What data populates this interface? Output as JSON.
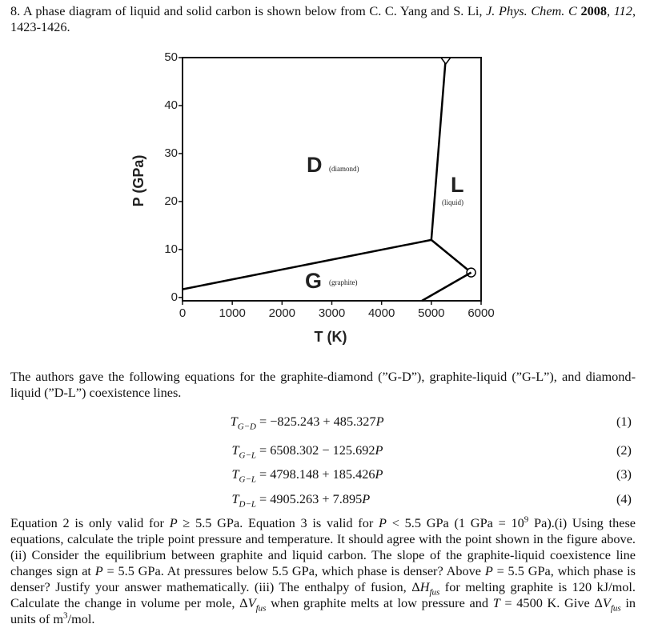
{
  "header": {
    "segments": [
      "8. A phase diagram of liquid and solid carbon is shown below from C. C. Yang and S. Li, ",
      "J. Phys. Chem. C",
      " ",
      "2008",
      ", ",
      "112",
      ", 1423-1426."
    ]
  },
  "chart_data": {
    "type": "line",
    "x_label": "T (K)",
    "y_label": "P (GPa)",
    "xlim": [
      0,
      6000
    ],
    "ylim": [
      -0.7,
      50
    ],
    "xticks": [
      0,
      1000,
      2000,
      3000,
      4000,
      5000,
      6000
    ],
    "yticks": [
      0,
      10,
      20,
      30,
      40,
      50
    ],
    "annotations": [
      "D",
      "(diamond)",
      "L",
      "(liquid)",
      "G",
      "(graphite)"
    ],
    "series": [
      {
        "color": "#000000",
        "x": [
          0,
          5000
        ],
        "values": [
          1.7,
          12
        ]
      },
      {
        "color": "#000000",
        "x": [
          5000,
          5290
        ],
        "values": [
          12,
          50
        ],
        "marker": "triangle"
      },
      {
        "color": "#000000",
        "x": [
          5000,
          5800
        ],
        "values": [
          12,
          5.2
        ],
        "marker": "circle"
      },
      {
        "color": "#000000",
        "x": [
          4810,
          5800
        ],
        "values": [
          -0.7,
          5.2
        ]
      }
    ]
  },
  "intro": "The authors gave the following equations for the graphite-diamond (”G-D”), graphite-liquid (”G-L”), and diamond-liquid (”D-L”) coexistence lines.",
  "equations": [
    {
      "lhs": "T",
      "sub": "G−D",
      "rhs": "= −825.243 + 485.327",
      "var": "P",
      "number": "(1)"
    },
    {
      "lhs": "T",
      "sub": "G−L",
      "rhs": "= 6508.302 − 125.692",
      "var": "P",
      "number": "(2)"
    },
    {
      "lhs": "T",
      "sub": "G−L",
      "rhs": "= 4798.148 + 185.426",
      "var": "P",
      "number": "(3)"
    },
    {
      "lhs": "T",
      "sub": "D−L",
      "rhs": "= 4905.263 + 7.895",
      "var": "P",
      "number": "(4)"
    }
  ],
  "question": {
    "segments": [
      "Equation 2 is only valid for ",
      "P",
      " ≥ 5.5 GPa. Equation 3 is valid for ",
      "P",
      " < 5.5 GPa (1 GPa = 10",
      "9",
      " Pa).(i) Using these equations, calculate the triple point pressure and temperature. It should agree with the point shown in the figure above. (ii) Consider the equilibrium between graphite and liquid carbon. The slope of the graphite-liquid coexistence line changes sign at ",
      "P",
      " = 5.5 GPa. At pressures below 5.5 GPa, which phase is denser? Above ",
      "P",
      " = 5.5 GPa, which phase is denser? Justify your answer mathematically. (iii) The enthalpy of fusion, Δ",
      "H",
      "fus",
      " for melting graphite is 120 kJ/mol. Calculate the change in volume per mole, Δ",
      "V",
      "fus",
      " when graphite melts at low pressure and ",
      "T",
      " = 4500 K. Give Δ",
      "V",
      "fus",
      " in units of m",
      "3",
      "/mol."
    ]
  }
}
